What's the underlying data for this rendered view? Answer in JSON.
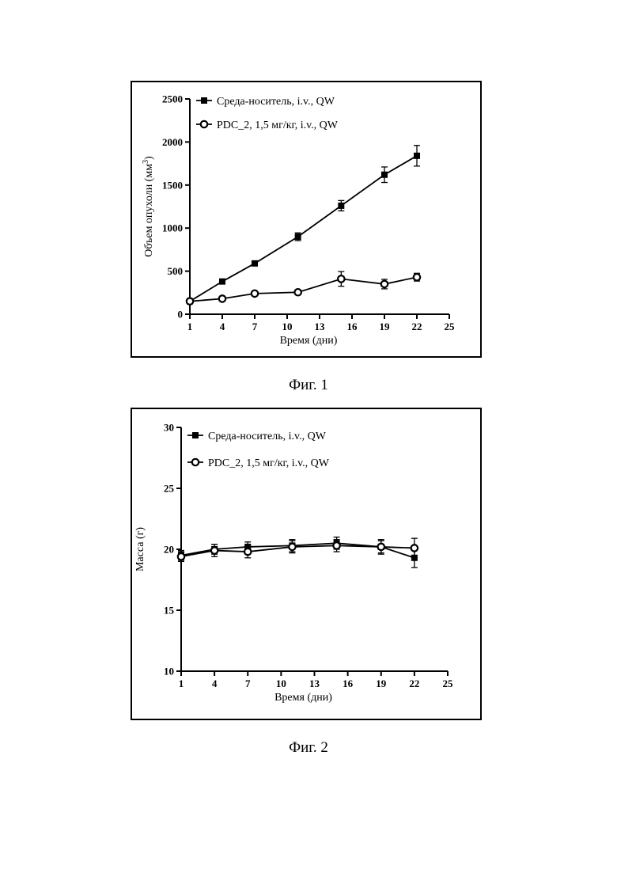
{
  "chart_data": [
    {
      "type": "line",
      "caption": "Фиг. 1",
      "xlabel": "Время (дни)",
      "ylabel": "Объем опухоли (мм",
      "ylabel_sup": "3",
      "ylabel_end": ")",
      "xlim": [
        1,
        25
      ],
      "ylim": [
        0,
        2500
      ],
      "xticks": [
        1,
        4,
        7,
        10,
        13,
        16,
        19,
        22,
        25
      ],
      "yticks": [
        0,
        500,
        1000,
        1500,
        2000,
        2500
      ],
      "legend": "top-left",
      "series": [
        {
          "name": "Среда-носитель, i.v., QW",
          "marker": "square",
          "x": [
            1,
            4,
            7,
            11,
            15,
            19,
            22
          ],
          "y": [
            150,
            380,
            590,
            900,
            1260,
            1620,
            1840
          ],
          "err": [
            20,
            20,
            25,
            45,
            60,
            90,
            120
          ]
        },
        {
          "name": "PDC_2, 1,5 мг/кг, i.v., QW",
          "marker": "circle-open",
          "x": [
            1,
            4,
            7,
            11,
            15,
            19,
            22
          ],
          "y": [
            150,
            180,
            240,
            255,
            410,
            350,
            430
          ],
          "err": [
            15,
            15,
            20,
            20,
            85,
            55,
            45
          ]
        }
      ]
    },
    {
      "type": "line",
      "caption": "Фиг. 2",
      "xlabel": "Время (дни)",
      "ylabel": "Масса (г)",
      "ylabel_sup": "",
      "ylabel_end": "",
      "xlim": [
        1,
        25
      ],
      "ylim": [
        10,
        30
      ],
      "xticks": [
        1,
        4,
        7,
        10,
        13,
        16,
        19,
        22,
        25
      ],
      "yticks": [
        10,
        15,
        20,
        25,
        30
      ],
      "legend": "top-left",
      "series": [
        {
          "name": "Среда-носитель, i.v., QW",
          "marker": "square",
          "x": [
            1,
            4,
            7,
            11,
            15,
            19,
            22
          ],
          "y": [
            19.5,
            20.0,
            20.2,
            20.3,
            20.5,
            20.2,
            19.3
          ],
          "err": [
            0.4,
            0.4,
            0.4,
            0.5,
            0.5,
            0.6,
            0.8
          ]
        },
        {
          "name": "PDC_2, 1,5 мг/кг, i.v., QW",
          "marker": "circle-open",
          "x": [
            1,
            4,
            7,
            11,
            15,
            19,
            22
          ],
          "y": [
            19.4,
            19.9,
            19.8,
            20.2,
            20.3,
            20.2,
            20.1
          ],
          "err": [
            0.4,
            0.5,
            0.5,
            0.5,
            0.5,
            0.5,
            0.8
          ]
        }
      ]
    }
  ]
}
